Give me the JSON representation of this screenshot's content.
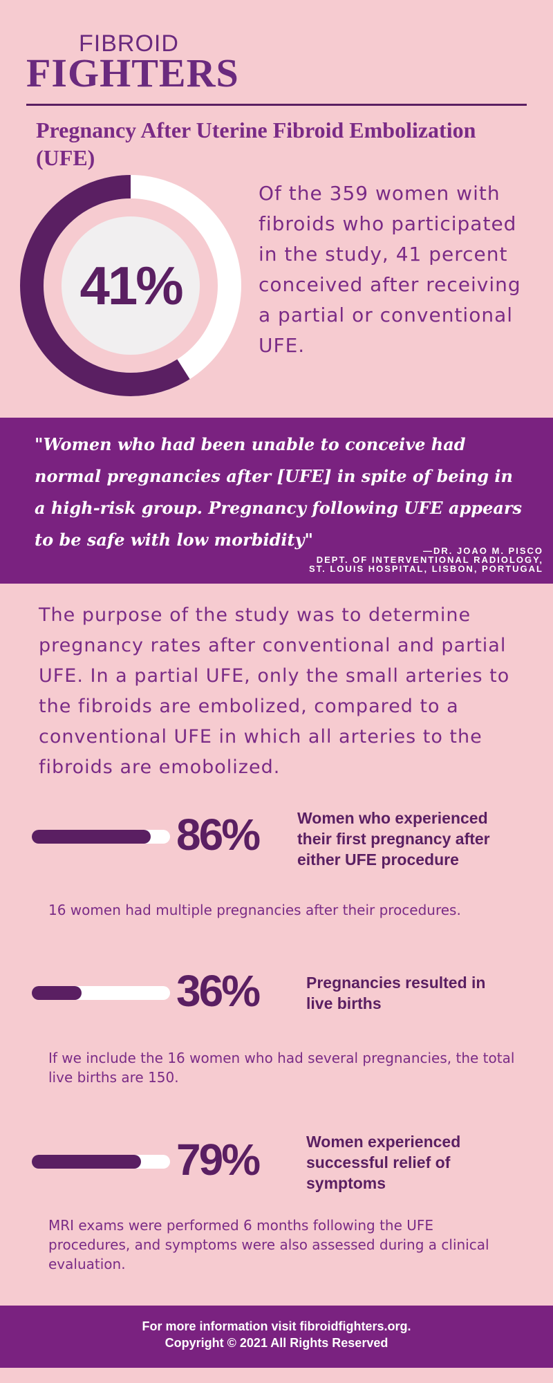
{
  "logo": {
    "top": "FIBROID",
    "main": "FIGHTERS"
  },
  "title": "Pregnancy After Uterine Fibroid Embolization (UFE)",
  "headline_stat": {
    "percent": "41%",
    "value": 0.41,
    "text": "Of the 359 women with fibroids who participated in the study, 41 percent conceived after receiving a partial or conventional UFE."
  },
  "quote": {
    "text": "\"Women who had been unable to conceive had normal pregnancies after [UFE] in spite of being in a high-risk group. Pregnancy following UFE appears to be safe with low morbidity\"",
    "author": "—DR. JOAO M. PISCO",
    "affiliation1": "DEPT. OF INTERVENTIONAL RADIOLOGY,",
    "affiliation2": "ST. LOUIS HOSPITAL, LISBON, PORTUGAL"
  },
  "purpose": "The purpose of the study was to determine pregnancy rates after conventional and partial UFE. In a partial UFE, only the small arteries to the fibroids are embolized, compared to a conventional UFE in which all arteries to the fibroids are emobolized.",
  "stats": [
    {
      "percent": "86%",
      "value": 0.86,
      "label": "Women who experienced their first pregnancy after either UFE procedure",
      "note": "16 women had multiple pregnancies after their procedures."
    },
    {
      "percent": "36%",
      "value": 0.36,
      "label": "Pregnancies resulted in live births",
      "note": "If we include the 16 women who had several pregnancies, the total live births are 150."
    },
    {
      "percent": "79%",
      "value": 0.79,
      "label": "Women experienced successful relief of symptoms",
      "note": "MRI exams were performed 6 months following the UFE procedures, and symptoms were also assessed during a clinical evaluation."
    }
  ],
  "footer": {
    "line1": "For more information visit fibroidfighters.org.",
    "line2": "Copyright © 2021 All Rights Reserved"
  },
  "colors": {
    "background": "#f6cbd0",
    "primary": "#7a2280",
    "dark": "#5a1f62",
    "inner_circle": "#f1eff0"
  }
}
